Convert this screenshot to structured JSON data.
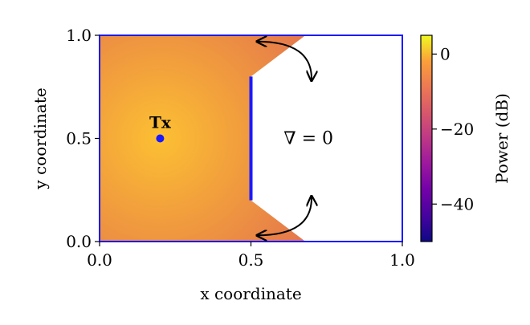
{
  "chart_data": {
    "type": "heatmap",
    "xlabel": "x coordinate",
    "ylabel": "y coordinate",
    "xlim": [
      0.0,
      1.0
    ],
    "ylim": [
      0.0,
      1.0
    ],
    "x_ticks": [
      "0.0",
      "0.5",
      "1.0"
    ],
    "y_ticks": [
      "0.0",
      "0.5",
      "1.0"
    ],
    "x_tick_values": [
      0.0,
      0.5,
      1.0
    ],
    "y_tick_values": [
      0.0,
      0.5,
      1.0
    ],
    "colorbar": {
      "label": "Power (dB)",
      "range": [
        -50,
        5
      ],
      "ticks": [
        "0",
        "−20",
        "−40"
      ],
      "tick_values": [
        0,
        -20,
        -40
      ],
      "colormap": "plasma"
    },
    "transmitter": {
      "label": "Tx",
      "x": 0.2,
      "y": 0.5,
      "color": "#1a1aff"
    },
    "field_region_polygon": [
      [
        0,
        0
      ],
      [
        0.68,
        0
      ],
      [
        0.5,
        0.2
      ],
      [
        0.5,
        0.8
      ],
      [
        0.68,
        1.0
      ],
      [
        0,
        1.0
      ]
    ],
    "reflector_line": {
      "x": [
        0.5,
        0.5
      ],
      "y": [
        0.2,
        0.8
      ],
      "color": "#1a1aff"
    },
    "domain_border_color": "#1a1aff",
    "region_annotation": "∇ = 0",
    "curved_arrows": [
      {
        "from": [
          0.52,
          0.97
        ],
        "to": [
          0.7,
          0.78
        ]
      },
      {
        "from": [
          0.52,
          0.03
        ],
        "to": [
          0.7,
          0.22
        ]
      }
    ],
    "field_colors": {
      "center": "#fcc033",
      "mid": "#f3a33b",
      "edge": "#e2704f"
    }
  }
}
